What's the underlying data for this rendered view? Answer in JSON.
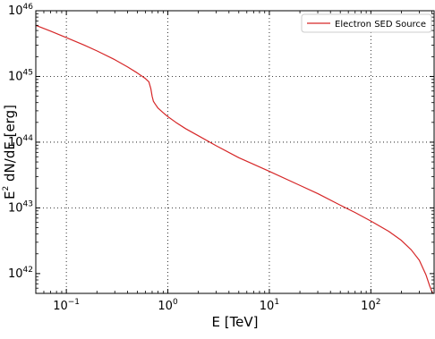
{
  "chart_data": {
    "type": "line",
    "title": "",
    "xlabel": "E [TeV]",
    "ylabel_base": "E",
    "ylabel_sup": "2",
    "ylabel_rest": " dN/dE [erg]",
    "xscale": "log",
    "yscale": "log",
    "xlim": [
      0.05,
      420
    ],
    "ylim": [
      5e+41,
      1e+46
    ],
    "grid": true,
    "grid_style": "dotted",
    "legend_position": "top-right",
    "x_ticks": [
      {
        "value": 0.1,
        "base": "10",
        "exp": "−1"
      },
      {
        "value": 1,
        "base": "10",
        "exp": "0"
      },
      {
        "value": 10,
        "base": "10",
        "exp": "1"
      },
      {
        "value": 100,
        "base": "10",
        "exp": "2"
      }
    ],
    "y_ticks": [
      {
        "value": 1e+42,
        "base": "10",
        "exp": "42"
      },
      {
        "value": 1e+43,
        "base": "10",
        "exp": "43"
      },
      {
        "value": 1e+44,
        "base": "10",
        "exp": "44"
      },
      {
        "value": 1e+45,
        "base": "10",
        "exp": "45"
      },
      {
        "value": 1e+46,
        "base": "10",
        "exp": "46"
      }
    ],
    "series": [
      {
        "name": "Electron SED Source",
        "color": "#d62728",
        "x": [
          0.05,
          0.07,
          0.1,
          0.15,
          0.2,
          0.3,
          0.4,
          0.5,
          0.6,
          0.65,
          0.68,
          0.7,
          0.72,
          0.75,
          0.8,
          0.9,
          1.0,
          1.2,
          1.5,
          2,
          3,
          5,
          7,
          10,
          20,
          30,
          50,
          70,
          100,
          150,
          200,
          250,
          300,
          350,
          380,
          400,
          410
        ],
        "y": [
          6e+45,
          4.9e+45,
          3.9e+45,
          3e+45,
          2.45e+45,
          1.8e+45,
          1.4e+45,
          1.13e+45,
          9.3e+44,
          8.3e+44,
          6.5e+44,
          5e+44,
          4.2e+44,
          3.8e+44,
          3.3e+44,
          2.8e+44,
          2.45e+44,
          2e+44,
          1.6e+44,
          1.25e+44,
          8.8e+43,
          5.8e+43,
          4.6e+43,
          3.6e+43,
          2.2e+43,
          1.65e+43,
          1.1e+43,
          8.5e+42,
          6.3e+42,
          4.4e+42,
          3.2e+42,
          2.3e+42,
          1.6e+42,
          9.5e+41,
          6.5e+41,
          5.3e+41,
          5e+41
        ]
      }
    ]
  }
}
